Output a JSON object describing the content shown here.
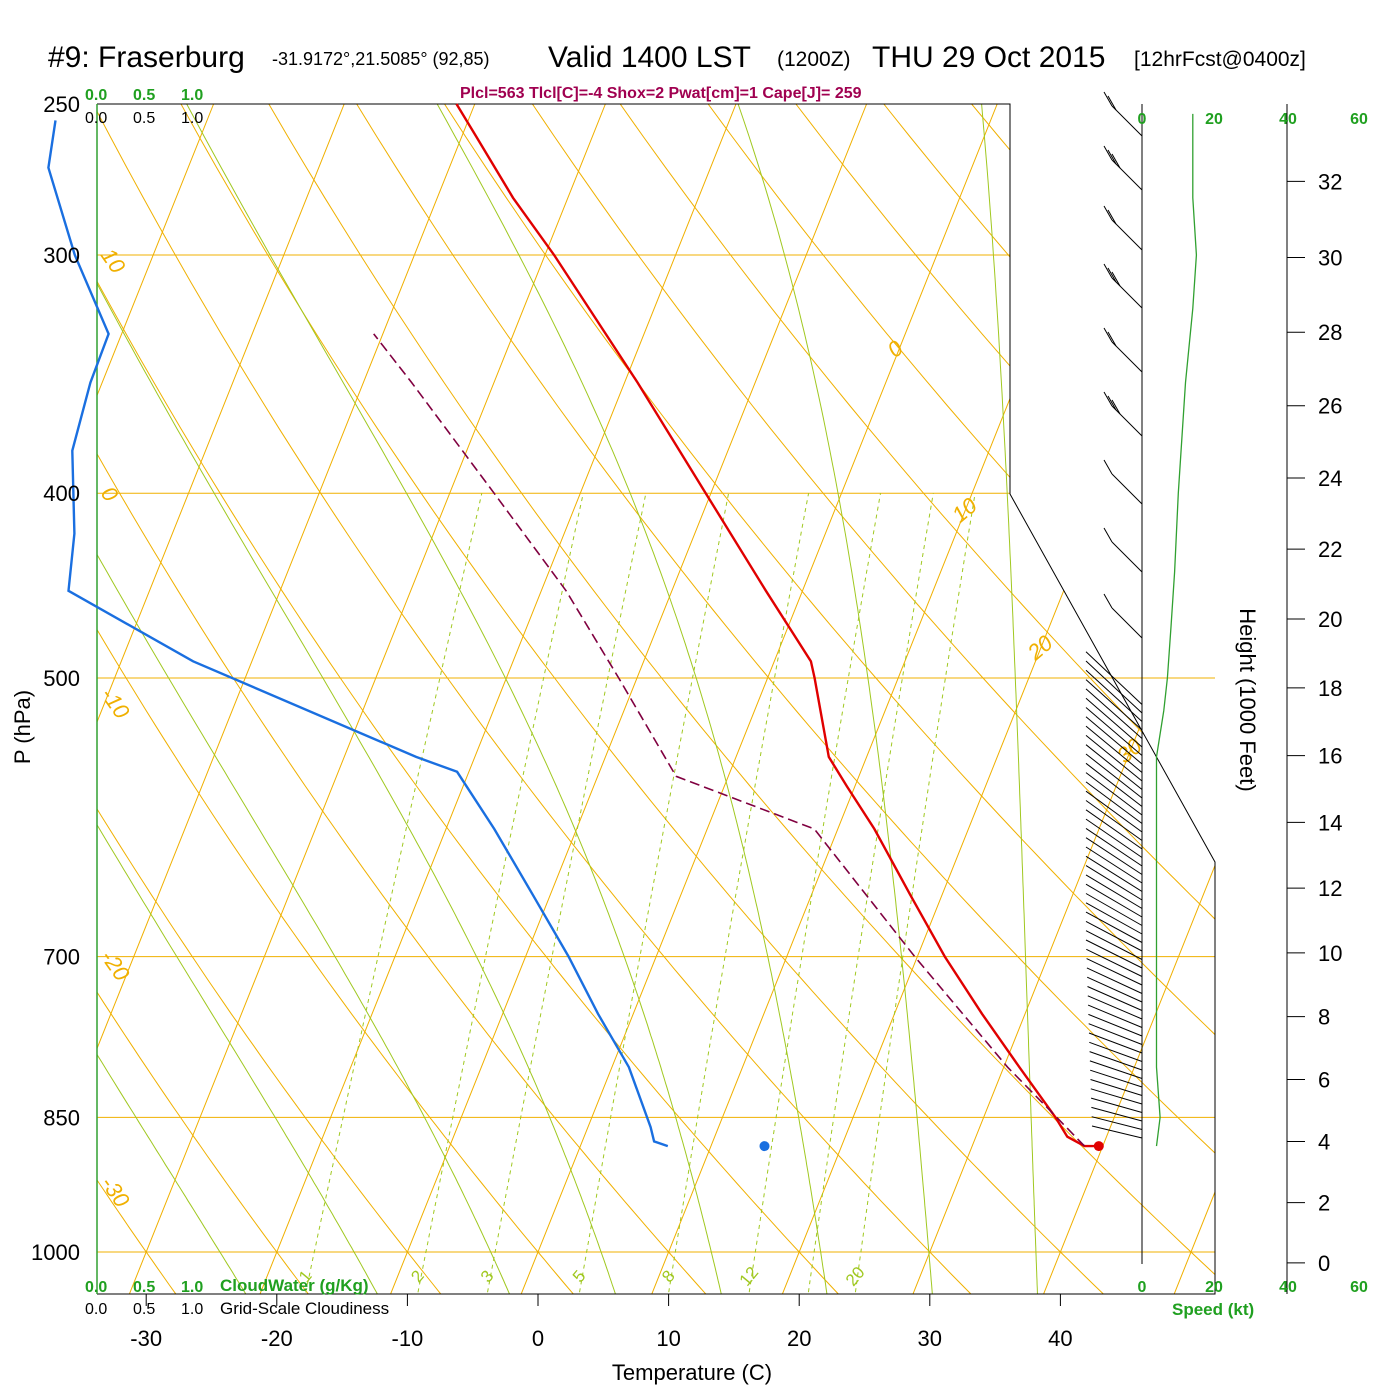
{
  "header": {
    "station": "#9: Fraserburg",
    "coords": "-31.9172°,21.5085° (92,85)",
    "valid": "Valid 1400 LST",
    "zulu": "(1200Z)",
    "date": "THU 29 Oct 2015",
    "forecast": "[12hrFcst@0400z]",
    "indices": "Plcl=563 Tlcl[C]=-4 Shox=2 Pwat[cm]=1 Cape[J]= 259"
  },
  "colors": {
    "temperature": "#e00000",
    "dewpoint": "#1a6fe0",
    "parcel": "#800040",
    "isotherm": "#f0b000",
    "dry_adiabat": "#f0b000",
    "moist_adiabat": "#a0c820",
    "mixing_ratio": "#a0c820",
    "wind_speed": "#30a030",
    "label_green": "#20a020",
    "indices": "#a00050"
  },
  "cloud": {
    "top_green": [
      "0.0",
      "0.5",
      "1.0"
    ],
    "top_black": [
      "0.0",
      "0.5",
      "1.0"
    ],
    "bottom_green": [
      "0.0",
      "0.5",
      "1.0"
    ],
    "bottom_black": [
      "0.0",
      "0.5",
      "1.0"
    ],
    "cloudwater_label": "CloudWater (g/Kg)",
    "cloudiness_label": "Grid-Scale Cloudiness"
  },
  "chart_data": {
    "type": "line",
    "subtype": "skew-T log-P sounding",
    "xlabel": "Temperature (C)",
    "ylabel": "P (hPa)",
    "y2label": "Height (1000 Feet)",
    "x_ticks": [
      -30,
      -20,
      -10,
      0,
      10,
      20,
      30,
      40
    ],
    "y_ticks": [
      250,
      300,
      400,
      500,
      700,
      850,
      1000
    ],
    "height_ticks": [
      0,
      2,
      4,
      6,
      8,
      10,
      12,
      14,
      16,
      18,
      20,
      22,
      24,
      26,
      28,
      30,
      32
    ],
    "pressure_range": [
      1070,
      250
    ],
    "isotherm_labels": [
      {
        "text": "10",
        "T": 10,
        "p": 300
      },
      {
        "text": "0",
        "T": 0,
        "p": 400
      },
      {
        "text": "-10",
        "T": -10,
        "p": 510
      },
      {
        "text": "-20",
        "T": -20,
        "p": 700
      },
      {
        "text": "-30",
        "T": -30,
        "p": 920
      },
      {
        "text": "0",
        "T": 0,
        "p": 340
      },
      {
        "text": "10",
        "T": 10,
        "p": 415
      },
      {
        "text": "20",
        "T": 20,
        "p": 490
      },
      {
        "text": "30",
        "T": 30,
        "p": 555
      }
    ],
    "mixing_ratio_labels": [
      "1",
      "2",
      "3",
      "5",
      "8",
      "12",
      "20"
    ],
    "series": [
      {
        "name": "Temperature",
        "points": [
          {
            "p": 880,
            "t": 39.5
          },
          {
            "p": 880,
            "t": 38.6
          },
          {
            "p": 870,
            "t": 37.0
          },
          {
            "p": 850,
            "t": 35.5
          },
          {
            "p": 800,
            "t": 31.2
          },
          {
            "p": 750,
            "t": 26.7
          },
          {
            "p": 700,
            "t": 22.1
          },
          {
            "p": 650,
            "t": 17.6
          },
          {
            "p": 600,
            "t": 12.8
          },
          {
            "p": 570,
            "t": 9.4
          },
          {
            "p": 550,
            "t": 7.1
          },
          {
            "p": 500,
            "t": 3.6
          },
          {
            "p": 490,
            "t": 2.8
          },
          {
            "p": 450,
            "t": -2.8
          },
          {
            "p": 400,
            "t": -10.4
          },
          {
            "p": 350,
            "t": -19.0
          },
          {
            "p": 300,
            "t": -29.3
          },
          {
            "p": 280,
            "t": -34.2
          },
          {
            "p": 260,
            "t": -38.9
          },
          {
            "p": 250,
            "t": -41.4
          }
        ]
      },
      {
        "name": "Dewpoint",
        "points": [
          {
            "p": 880,
            "t": 6.7
          },
          {
            "p": 875,
            "t": 5.5
          },
          {
            "p": 860,
            "t": 4.8
          },
          {
            "p": 800,
            "t": 1.3
          },
          {
            "p": 750,
            "t": -2.7
          },
          {
            "p": 700,
            "t": -6.7
          },
          {
            "p": 650,
            "t": -11.3
          },
          {
            "p": 600,
            "t": -16.3
          },
          {
            "p": 560,
            "t": -20.9
          },
          {
            "p": 550,
            "t": -24.5
          },
          {
            "p": 490,
            "t": -44.5
          },
          {
            "p": 450,
            "t": -56.2
          },
          {
            "p": 420,
            "t": -57.5
          },
          {
            "p": 380,
            "t": -60.2
          },
          {
            "p": 350,
            "t": -60.9
          },
          {
            "p": 330,
            "t": -61.0
          },
          {
            "p": 300,
            "t": -66.0
          },
          {
            "p": 270,
            "t": -70.7
          },
          {
            "p": 255,
            "t": -71.6
          }
        ]
      },
      {
        "name": "Parcel",
        "points": [
          {
            "p": 880,
            "t": 38.6
          },
          {
            "p": 850,
            "t": 35.6
          },
          {
            "p": 800,
            "t": 30.3
          },
          {
            "p": 700,
            "t": 19.8
          },
          {
            "p": 600,
            "t": 8.2
          },
          {
            "p": 563,
            "t": -4.0
          },
          {
            "p": 500,
            "t": -11.4
          },
          {
            "p": 450,
            "t": -18.1
          },
          {
            "p": 400,
            "t": -26.6
          },
          {
            "p": 350,
            "t": -36.3
          },
          {
            "p": 330,
            "t": -40.7
          }
        ]
      }
    ],
    "surface_markers": [
      {
        "name": "surface temperature",
        "p": 880,
        "t": 39.7
      },
      {
        "name": "surface dewpoint",
        "p": 880,
        "t": 14.1
      }
    ],
    "wind_speed_axis": {
      "ticks": [
        "0",
        "20",
        "40",
        "60"
      ],
      "label": "Speed (kt)"
    },
    "wind_speed_profile": [
      {
        "p": 880,
        "kt": 4
      },
      {
        "p": 850,
        "kt": 5
      },
      {
        "p": 800,
        "kt": 4
      },
      {
        "p": 750,
        "kt": 4
      },
      {
        "p": 700,
        "kt": 4
      },
      {
        "p": 650,
        "kt": 4
      },
      {
        "p": 600,
        "kt": 4
      },
      {
        "p": 550,
        "kt": 4
      },
      {
        "p": 520,
        "kt": 6
      },
      {
        "p": 500,
        "kt": 7
      },
      {
        "p": 470,
        "kt": 8
      },
      {
        "p": 440,
        "kt": 9
      },
      {
        "p": 400,
        "kt": 10
      },
      {
        "p": 350,
        "kt": 12
      },
      {
        "p": 320,
        "kt": 14
      },
      {
        "p": 300,
        "kt": 15
      },
      {
        "p": 280,
        "kt": 14
      },
      {
        "p": 260,
        "kt": 14
      },
      {
        "p": 253,
        "kt": 14
      }
    ]
  }
}
